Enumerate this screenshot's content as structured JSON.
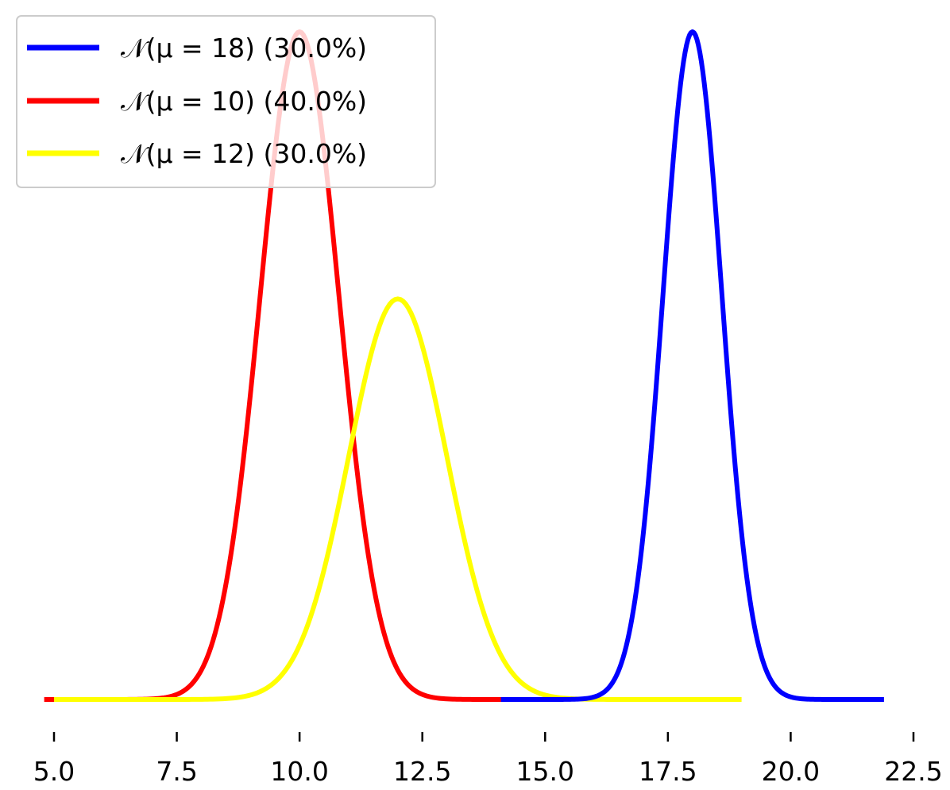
{
  "chart_data": {
    "type": "line",
    "title": "",
    "xlabel": "",
    "ylabel": "",
    "xlim": [
      4.6,
      22.7
    ],
    "ylim": [
      0,
      0.202
    ],
    "x_ticks": [
      "5.0",
      "7.5",
      "10.0",
      "12.5",
      "15.0",
      "17.5",
      "20.0",
      "22.5"
    ],
    "y_axis_visible": false,
    "grid": false,
    "legend_position": "top-left",
    "series": [
      {
        "name": "𝒩(μ = 18) (30.0%)",
        "color": "#0000ff",
        "mean": 18,
        "sd": 0.6,
        "weight": 0.3,
        "x_range": [
          14.1,
          21.9
        ],
        "peak": 0.1995
      },
      {
        "name": "𝒩(μ = 10) (40.0%)",
        "color": "#ff0000",
        "mean": 10,
        "sd": 0.8,
        "weight": 0.4,
        "x_range": [
          4.8,
          15.2
        ],
        "peak": 0.1995
      },
      {
        "name": "𝒩(μ = 12) (30.0%)",
        "color": "#ffff00",
        "mean": 12,
        "sd": 1.0,
        "weight": 0.3,
        "x_range": [
          5.0,
          19.0
        ],
        "peak": 0.1197
      }
    ]
  }
}
